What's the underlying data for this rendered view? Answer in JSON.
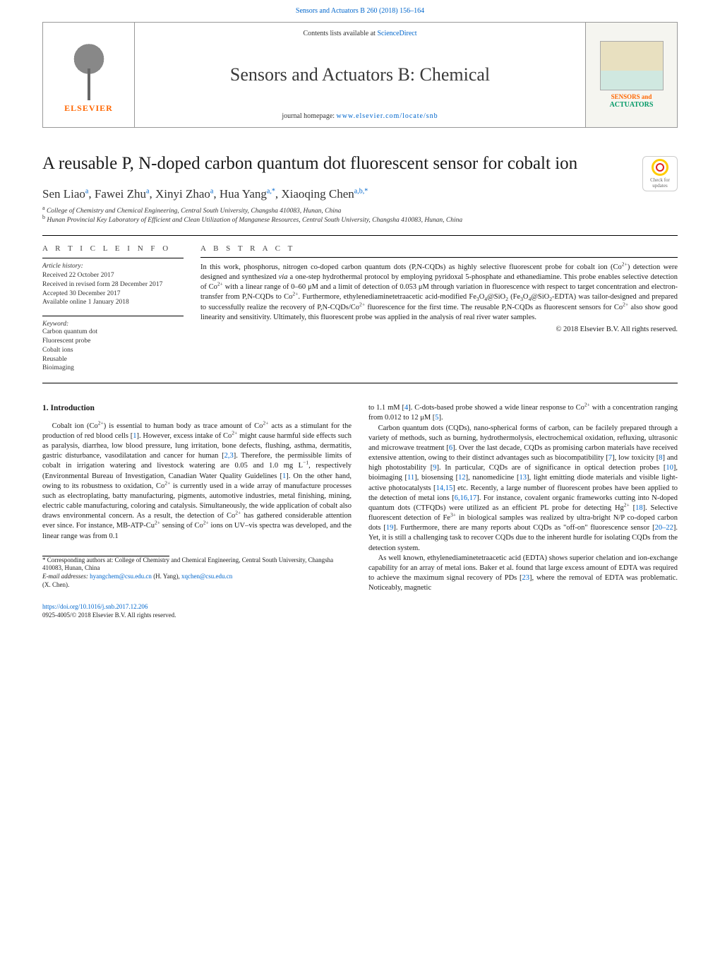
{
  "header": {
    "citation": "Sensors and Actuators B 260 (2018) 156–164",
    "contents_prefix": "Contents lists available at ",
    "contents_link": "ScienceDirect",
    "journal_name": "Sensors and Actuators B: Chemical",
    "homepage_prefix": "journal homepage: ",
    "homepage_link": "www.elsevier.com/locate/snb",
    "publisher": "ELSEVIER",
    "cover_brand_line1": "SENSORS and",
    "cover_brand_line2": "ACTUATORS",
    "crossmark": "Check for updates"
  },
  "article": {
    "title": "A reusable P, N-doped carbon quantum dot fluorescent sensor for cobalt ion",
    "authors_html": "Sen Liao<sup>a</sup>, Fawei Zhu<sup>a</sup>, Xinyi Zhao<sup>a</sup>, Hua Yang<sup>a,*</sup>, Xiaoqing Chen<sup>a,b,*</sup>",
    "affiliations": [
      "a College of Chemistry and Chemical Engineering, Central South University, Changsha 410083, Hunan, China",
      "b Hunan Provincial Key Laboratory of Efficient and Clean Utilization of Manganese Resources, Central South University, Changsha 410083, Hunan, China"
    ]
  },
  "info": {
    "heading": "A R T I C L E   I N F O",
    "history_label": "Article history:",
    "history": [
      "Received 22 October 2017",
      "Received in revised form 28 December 2017",
      "Accepted 30 December 2017",
      "Available online 1 January 2018"
    ],
    "keyword_label": "Keyword:",
    "keywords": [
      "Carbon quantum dot",
      "Fluorescent probe",
      "Cobalt ions",
      "Reusable",
      "Bioimaging"
    ]
  },
  "abstract": {
    "heading": "A B S T R A C T",
    "text_html": "In this work, phosphorus, nitrogen co-doped carbon quantum dots (P,N-CQDs) as highly selective fluorescent probe for cobalt ion (Co<sup>2+</sup>) detection were designed and synthesized <i>via</i> a one-step hydrothermal protocol by employing pyridoxal 5-phosphate and ethanediamine. This probe enables selective detection of Co<sup>2+</sup> with a linear range of 0–60 μM and a limit of detection of 0.053 μM through variation in fluorescence with respect to target concentration and electron-transfer from P,N-CQDs to Co<sup>2+</sup>. Furthermore, ethylenediaminetetraacetic acid-modified Fe<sub>3</sub>O<sub>4</sub>@SiO<sub>2</sub> (Fe<sub>3</sub>O<sub>4</sub>@SiO<sub>2</sub>-EDTA) was tailor-designed and prepared to successfully realize the recovery of P,N-CQDs/Co<sup>2+</sup> fluorescence for the first time. The reusable P,N-CQDs as fluorescent sensors for Co<sup>2+</sup> also show good linearity and sensitivity. Ultimately, this fluorescent probe was applied in the analysis of real river water samples.",
    "copyright": "© 2018 Elsevier B.V. All rights reserved."
  },
  "body": {
    "section_heading": "1.  Introduction",
    "p1_html": "Cobalt ion (Co<sup>2+</sup>) is essential to human body as trace amount of Co<sup>2+</sup> acts as a stimulant for the production of red blood cells [<a class=\"ref\">1</a>]. However, excess intake of Co<sup>2+</sup> might cause harmful side effects such as paralysis, diarrhea, low blood pressure, lung irritation, bone defects, flushing, asthma, dermatitis, gastric disturbance, vasodilatation and cancer for human [<a class=\"ref\">2,3</a>]. Therefore, the permissible limits of cobalt in irrigation watering and livestock watering are 0.05 and 1.0 mg L<sup>−1</sup>, respectively (Environmental Bureau of Investigation, Canadian Water Quality Guidelines [<a class=\"ref\">1</a>]. On the other hand, owing to its robustness to oxidation, Co<sup>2+</sup> is currently used in a wide array of manufacture processes such as electroplating, batty manufacturing, pigments, automotive industries, metal finishing, mining, electric cable manufacturing, coloring and catalysis. Simultaneously, the wide application of cobalt also draws environmental concern. As a result, the detection of Co<sup>2+</sup> has gathered considerable attention ever since. For instance, MB-ATP-Cu<sup>2+</sup> sensing of Co<sup>2+</sup> ions on UV–vis spectra was developed, and the linear range was from 0.1",
    "p2_html": "to 1.1 mM [<a class=\"ref\">4</a>]. C-dots-based probe showed a wide linear response to Co<sup>2+</sup> with a concentration ranging from 0.012 to 12 μM [<a class=\"ref\">5</a>].",
    "p3_html": "Carbon quantum dots (CQDs), nano-spherical forms of carbon, can be facilely prepared through a variety of methods, such as burning, hydrothermolysis, electrochemical oxidation, refluxing, ultrasonic and microwave treatment [<a class=\"ref\">6</a>]. Over the last decade, CQDs as promising carbon materials have received extensive attention, owing to their distinct advantages such as biocompatibility [<a class=\"ref\">7</a>], low toxicity [<a class=\"ref\">8</a>] and high photostability [<a class=\"ref\">9</a>]. In particular, CQDs are of significance in optical detection probes [<a class=\"ref\">10</a>], bioimaging [<a class=\"ref\">11</a>], biosensing [<a class=\"ref\">12</a>], nanomedicine [<a class=\"ref\">13</a>], light emitting diode materials and visible light-active photocatalysts [<a class=\"ref\">14,15</a>] etc. Recently, a large number of fluorescent probes have been applied to the detection of metal ions [<a class=\"ref\">6,16,17</a>]. For instance, covalent organic frameworks cutting into N-doped quantum dots (CTFQDs) were utilized as an efficient PL probe for detecting Hg<sup>2+</sup> [<a class=\"ref\">18</a>]. Selective fluorescent detection of Fe<sup>3+</sup> in biological samples was realized by ultra-bright N/P co-doped carbon dots [<a class=\"ref\">19</a>]. Furthermore, there are many reports about CQDs as \"off-on\" fluorescence sensor [<a class=\"ref\">20–22</a>]. Yet, it is still a challenging task to recover CQDs due to the inherent hurdle for isolating CQDs from the detection system.",
    "p4_html": "As well known, ethylenediaminetetraacetic acid (EDTA) shows superior chelation and ion-exchange capability for an array of metal ions. Baker et al. found that large excess amount of EDTA was required to achieve the maximum signal recovery of PDs [<a class=\"ref\">23</a>], where the removal of EDTA was problematic. Noticeably, magnetic"
  },
  "footnotes": {
    "corr_html": "* Corresponding authors at: College of Chemistry and Chemical Engineering, Central South University, Changsha 410083, Hunan, China",
    "email_label": "E-mail addresses: ",
    "email1": "hyangchem@csu.edu.cn",
    "email1_name": " (H. Yang), ",
    "email2": "xqchen@csu.edu.cn",
    "email2_name": " (X. Chen)."
  },
  "footer": {
    "doi": "https://doi.org/10.1016/j.snb.2017.12.206",
    "issn_line": "0925-4005/© 2018 Elsevier B.V. All rights reserved."
  },
  "colors": {
    "link": "#0066cc",
    "text": "#1a1a1a",
    "elsevier_orange": "#ff6600",
    "actuators_green": "#009966",
    "rule": "#000000"
  }
}
